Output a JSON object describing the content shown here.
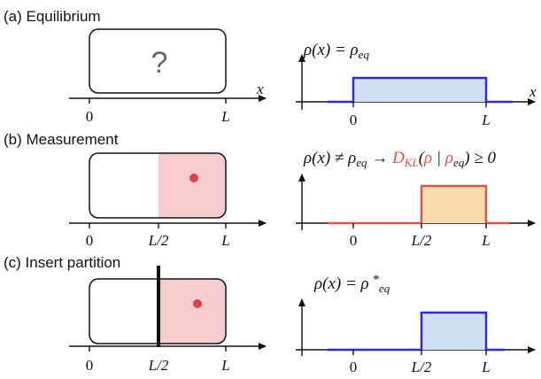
{
  "colors": {
    "blue_line": "#2f2fc8",
    "blue_fill": "#cfe0f3",
    "red_line": "#d9534f",
    "red_box": "#f6cccc",
    "orange_fill": "#f8dcae",
    "particle": "#d9434a",
    "question": "#666666"
  },
  "panels": [
    {
      "label": "(a) Equilibrium",
      "box_symbol": "?",
      "x_axis_symbol": "x",
      "ticks": [
        "0",
        "L"
      ],
      "density_label": "ρ(x) = ρeq",
      "density_tick_labels": [
        "0",
        "L"
      ]
    },
    {
      "label": "(b) Measurement",
      "ticks": [
        "0",
        "L/2",
        "L"
      ],
      "density_label": "ρ(x) ≠ ρeq → DKL(ρ | ρeq) ≥ 0",
      "density_tick_labels": [
        "0",
        "L/2",
        "L"
      ]
    },
    {
      "label": "(c) Insert partition",
      "ticks": [
        "0",
        "L/2",
        "L"
      ],
      "density_label": "ρ(x) = ρ*eq",
      "density_tick_labels": [
        "0",
        "L/2",
        "L"
      ]
    }
  ]
}
